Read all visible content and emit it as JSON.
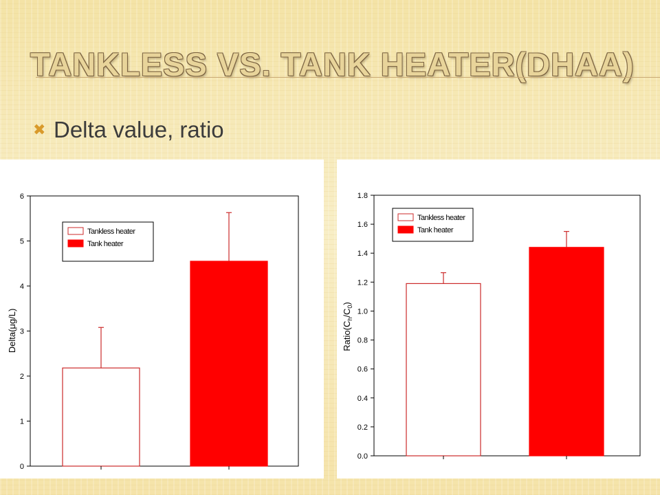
{
  "slide": {
    "title": "TANKLESS VS. TANK HEATER(DHAA)",
    "bullet_icon": "x-mark-bullet-icon",
    "bullet_text": "Delta value, ratio"
  },
  "colors": {
    "tankless_fill": "#ffffff",
    "tankless_stroke": "#cc2a2a",
    "tank_fill": "#ff0000",
    "error_bar": "#cc2a2a"
  },
  "chart_data": [
    {
      "type": "bar",
      "categories": [
        "Tankless heater",
        "Tank heater"
      ],
      "values": [
        2.18,
        4.55
      ],
      "error_upper": [
        0.9,
        1.08
      ],
      "title": "",
      "xlabel": "",
      "ylabel": "Delta(μg/L)",
      "ylim": [
        0,
        6
      ],
      "yticks": [
        "0",
        "1",
        "2",
        "3",
        "4",
        "5",
        "6"
      ],
      "legend": [
        "Tankless heater",
        "Tank heater"
      ],
      "legend_position": "top-left",
      "grid": false
    },
    {
      "type": "bar",
      "categories": [
        "Tankless heater",
        "Tank heater"
      ],
      "values": [
        1.19,
        1.44
      ],
      "error_upper": [
        0.075,
        0.11
      ],
      "title": "",
      "xlabel": "",
      "ylabel": "Ratio(Ch/C0)",
      "ylabel_parts": {
        "prefix": "Ratio(C",
        "sub1": "h",
        "mid": "/C",
        "sub2": "0",
        "suffix": ")"
      },
      "ylim": [
        0,
        1.8
      ],
      "yticks": [
        "0.0",
        "0.2",
        "0.4",
        "0.6",
        "0.8",
        "1.0",
        "1.2",
        "1.4",
        "1.6",
        "1.8"
      ],
      "legend": [
        "Tankless heater",
        "Tank heater"
      ],
      "legend_position": "top-left",
      "grid": false
    }
  ]
}
